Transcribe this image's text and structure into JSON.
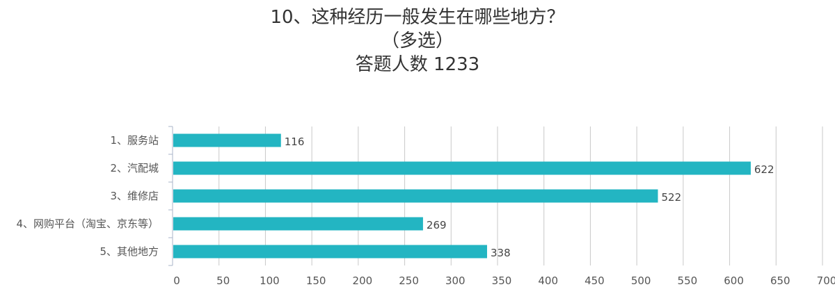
{
  "chart_data": {
    "type": "bar",
    "orientation": "horizontal",
    "title_lines": [
      "10、这种经历一般发生在哪些地方？",
      "（多选）",
      "答题人数 1233"
    ],
    "categories": [
      "1、服务站",
      "2、汽配城",
      "3、维修店",
      "4、网购平台（淘宝、京东等）",
      "5、其他地方"
    ],
    "values": [
      116,
      622,
      522,
      269,
      338
    ],
    "xlim": [
      0,
      700
    ],
    "xticks": [
      0,
      50,
      100,
      150,
      200,
      250,
      300,
      350,
      400,
      450,
      500,
      550,
      600,
      650,
      700
    ],
    "grid": true,
    "bar_color": "#23b5c2",
    "grid_color": "#c8c8c8",
    "axis_color": "#aab4c8"
  }
}
